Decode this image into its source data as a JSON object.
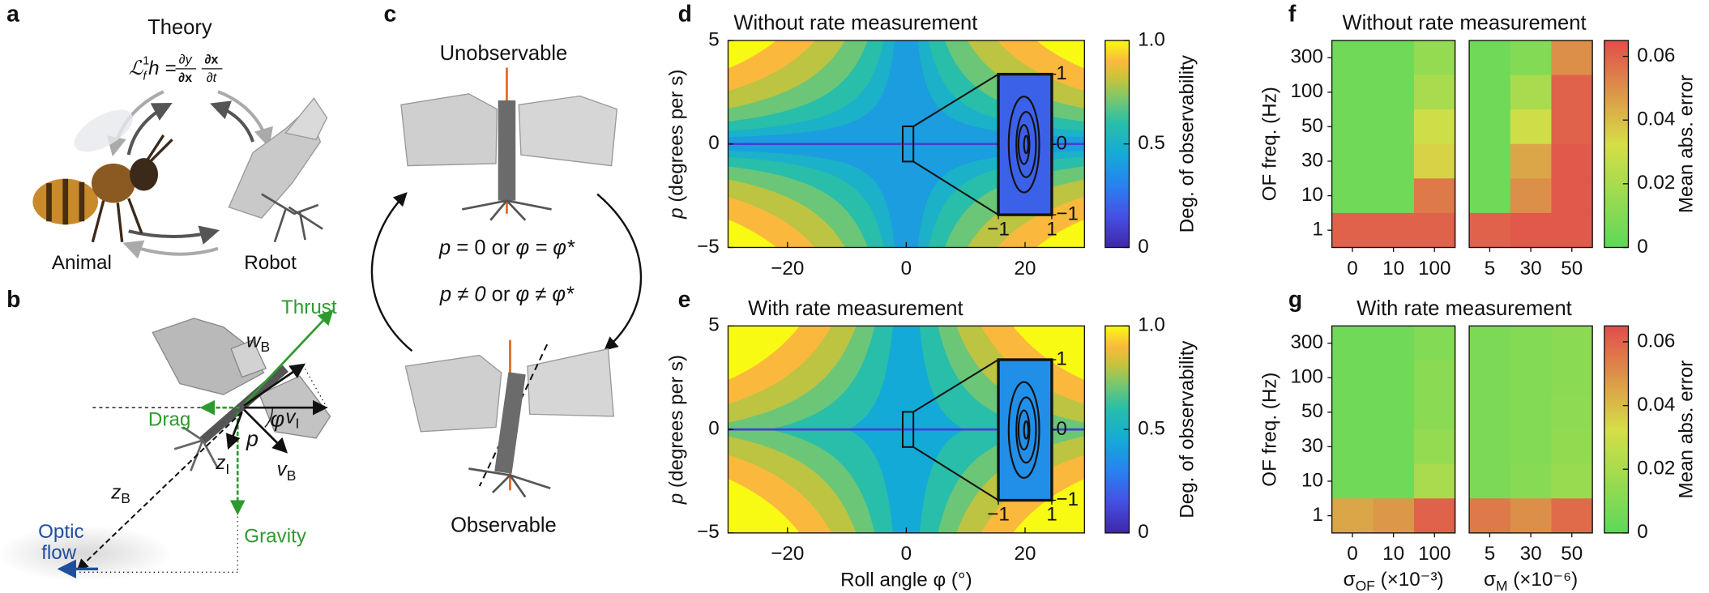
{
  "figure": {
    "a": {
      "label": "a",
      "title": "Theory",
      "formula": {
        "L": "ℒ",
        "sup": "1",
        "sub": "f",
        "h": "h =",
        "n1": "∂y",
        "d1": "∂x",
        "n2": "∂x",
        "d2": "∂t"
      },
      "animal": "Animal",
      "robot": "Robot"
    },
    "b": {
      "label": "b",
      "thrust": "Thrust",
      "drag": "Drag",
      "gravity": "Gravity",
      "optic_flow": [
        "Optic",
        "flow"
      ],
      "vectors": [
        {
          "symbol": "w",
          "sub": "B"
        },
        {
          "symbol": "v",
          "sub": "I"
        },
        {
          "symbol": "v",
          "sub": "B"
        },
        {
          "symbol": "z",
          "sub": "I"
        },
        {
          "symbol": "z",
          "sub": "B"
        }
      ],
      "angles": [
        "φ",
        "p"
      ]
    },
    "c": {
      "label": "c",
      "top": "Unobservable",
      "bottom": "Observable",
      "conditions": [
        [
          "p",
          "= 0  or",
          "φ = φ*"
        ],
        [
          "p ≠ 0",
          "or",
          "φ ≠ φ*"
        ]
      ]
    }
  },
  "chart_data": [
    {
      "type": "contour",
      "panel": "d",
      "title": "Without rate measurement",
      "xlim": [
        -30,
        30
      ],
      "xticks": [
        {
          "value": -20,
          "label": "−20"
        },
        0,
        20
      ],
      "ylim": [
        -5,
        5
      ],
      "yticks": [
        5,
        0,
        {
          "value": -5,
          "label": "−5"
        }
      ],
      "ylabel": {
        "symbol": "p",
        "text": "(degrees per s)"
      },
      "contour_levels": [
        0.9,
        0.8,
        0.7,
        0.6,
        0.5,
        0.4
      ],
      "colorbar": {
        "label": "Deg. of observability",
        "clim": [
          0,
          1
        ],
        "ticks": [
          {
            "value": 1,
            "label": "1.0"
          },
          0.5,
          0
        ]
      },
      "inset": {
        "xlim": [
          -1,
          1
        ],
        "ylim": [
          -1,
          1
        ],
        "xticks": [
          {
            "value": -1,
            "label": "−1"
          },
          1
        ],
        "yticks": [
          1,
          0,
          {
            "value": -1,
            "label": "−1"
          }
        ]
      }
    },
    {
      "type": "contour",
      "panel": "e",
      "title": "With rate measurement",
      "xlim": [
        -30,
        30
      ],
      "xticks": [
        {
          "value": -20,
          "label": "−20"
        },
        0,
        20
      ],
      "ylim": [
        -5,
        5
      ],
      "yticks": [
        5,
        0,
        {
          "value": -5,
          "label": "−5"
        }
      ],
      "ylabel": {
        "symbol": "p",
        "text": "(degrees per s)"
      },
      "xlabel": "Roll angle φ (°)",
      "contour_levels": [
        0.9,
        0.8,
        0.7,
        0.6,
        0.45
      ],
      "colorbar": {
        "label": "Deg. of observability",
        "clim": [
          0,
          1
        ],
        "ticks": [
          {
            "value": 1,
            "label": "1.0"
          },
          0.5,
          0
        ]
      },
      "inset": {
        "xlim": [
          -1,
          1
        ],
        "ylim": [
          -1,
          1
        ],
        "xticks": [
          {
            "value": -1,
            "label": "−1"
          },
          1
        ],
        "yticks": [
          1,
          0,
          {
            "value": -1,
            "label": "−1"
          }
        ]
      }
    },
    {
      "type": "heatmap",
      "panel": "f",
      "title": "Without rate measurement",
      "ylabel": "OF freq. (Hz)",
      "rows": [
        "300",
        "100",
        "50",
        "30",
        "10",
        "1"
      ],
      "blocks": [
        {
          "columns": [
            "0",
            "10",
            "100"
          ],
          "values": [
            [
              0.005,
              0.005,
              0.015
            ],
            [
              0.005,
              0.005,
              0.02
            ],
            [
              0.005,
              0.005,
              0.03
            ],
            [
              0.005,
              0.005,
              0.035
            ],
            [
              0.005,
              0.005,
              0.055
            ],
            [
              0.06,
              0.06,
              0.06
            ]
          ]
        },
        {
          "columns": [
            "5",
            "30",
            "50"
          ],
          "values": [
            [
              0.005,
              0.01,
              0.05
            ],
            [
              0.005,
              0.02,
              0.06
            ],
            [
              0.005,
              0.03,
              0.06
            ],
            [
              0.005,
              0.045,
              0.062
            ],
            [
              0.005,
              0.05,
              0.062
            ],
            [
              0.06,
              0.062,
              0.062
            ]
          ]
        }
      ],
      "colorbar": {
        "label": "Mean abs. error",
        "clim": [
          0,
          0.065
        ],
        "ticks": [
          0.06,
          0.04,
          0.02,
          0
        ]
      }
    },
    {
      "type": "heatmap",
      "panel": "g",
      "title": "With rate measurement",
      "ylabel": "OF freq. (Hz)",
      "rows": [
        "300",
        "100",
        "50",
        "30",
        "10",
        "1"
      ],
      "blocks": [
        {
          "columns": [
            "0",
            "10",
            "100"
          ],
          "values": [
            [
              0.005,
              0.005,
              0.01
            ],
            [
              0.005,
              0.005,
              0.012
            ],
            [
              0.005,
              0.005,
              0.012
            ],
            [
              0.005,
              0.005,
              0.015
            ],
            [
              0.005,
              0.005,
              0.02
            ],
            [
              0.045,
              0.048,
              0.06
            ]
          ]
        },
        {
          "columns": [
            "5",
            "30",
            "50"
          ],
          "values": [
            [
              0.008,
              0.01,
              0.012
            ],
            [
              0.008,
              0.01,
              0.012
            ],
            [
              0.008,
              0.01,
              0.013
            ],
            [
              0.008,
              0.01,
              0.014
            ],
            [
              0.008,
              0.011,
              0.016
            ],
            [
              0.055,
              0.05,
              0.058
            ]
          ]
        }
      ],
      "colorbar": {
        "label": "Mean abs. error",
        "clim": [
          0,
          0.065
        ],
        "ticks": [
          0.06,
          0.04,
          0.02,
          0
        ]
      },
      "xlabels": [
        {
          "symbol": "σ",
          "sub": "OF",
          "unit": " (×10⁻³)"
        },
        {
          "symbol": "σ",
          "sub": "M",
          "unit": " (×10⁻⁶)"
        }
      ]
    }
  ]
}
